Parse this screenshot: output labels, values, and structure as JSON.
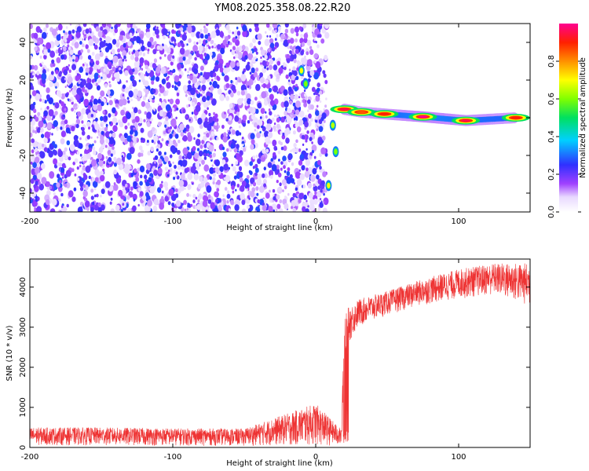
{
  "title": "YM08.2025.358.08.22.R20",
  "chart_data": [
    {
      "type": "heatmap",
      "title": "YM08.2025.358.08.22.R20",
      "xlabel": "Height of straight line (km)",
      "ylabel": "Frequency (Hz)",
      "xlim": [
        -200,
        150
      ],
      "ylim": [
        -50,
        50
      ],
      "x_ticks": [
        -200,
        -100,
        0,
        100
      ],
      "y_ticks": [
        -40,
        -20,
        0,
        20,
        40
      ],
      "x_tick_labels": [
        "-200",
        "-100",
        "0",
        "100"
      ],
      "y_tick_labels": [
        "-40",
        "-20",
        "0",
        "20",
        "40"
      ],
      "noise_region_x": [
        -200,
        8
      ],
      "signal_track": [
        {
          "x": 20,
          "freq": 4.5,
          "amp": 0.95
        },
        {
          "x": 32,
          "freq": 3.0,
          "amp": 0.85
        },
        {
          "x": 48,
          "freq": 2.0,
          "amp": 0.9
        },
        {
          "x": 75,
          "freq": 0.5,
          "amp": 1.0
        },
        {
          "x": 105,
          "freq": -1.5,
          "amp": 0.95
        },
        {
          "x": 140,
          "freq": 0.0,
          "amp": 0.9
        }
      ],
      "isolated_blobs": [
        {
          "x": -10,
          "freq": 25,
          "amp": 0.7
        },
        {
          "x": -7,
          "freq": 18,
          "amp": 0.6
        },
        {
          "x": 12,
          "freq": -4,
          "amp": 0.65
        },
        {
          "x": 14,
          "freq": -18,
          "amp": 0.6
        },
        {
          "x": 9,
          "freq": -36,
          "amp": 0.7
        }
      ],
      "colorbar": {
        "label": "Normalized spectral amplitude",
        "range": [
          0,
          1
        ],
        "ticks": [
          "0.0",
          "0.2",
          "0.4",
          "0.6",
          "0.8"
        ],
        "tick_values": [
          0.0,
          0.2,
          0.4,
          0.6,
          0.8
        ]
      }
    },
    {
      "type": "line",
      "xlabel": "Height of straight line (km)",
      "ylabel": "SNR (10 * v/v)",
      "xlim": [
        -200,
        150
      ],
      "ylim": [
        0,
        4700
      ],
      "x_ticks": [
        -200,
        -100,
        0,
        100
      ],
      "y_ticks": [
        0,
        1000,
        2000,
        3000,
        4000
      ],
      "x_tick_labels": [
        "-200",
        "-100",
        "0",
        "100"
      ],
      "y_tick_labels": [
        "0",
        "1000",
        "2000",
        "3000",
        "4000"
      ],
      "line_color": "#ee3333",
      "series_envelope": [
        {
          "x": -200,
          "low": 50,
          "high": 500
        },
        {
          "x": -150,
          "low": 50,
          "high": 500
        },
        {
          "x": -100,
          "low": 40,
          "high": 480
        },
        {
          "x": -50,
          "low": 40,
          "high": 470
        },
        {
          "x": 0,
          "low": 40,
          "high": 1100
        },
        {
          "x": 18,
          "low": 40,
          "high": 450
        },
        {
          "x": 20,
          "low": 2400,
          "high": 3400
        },
        {
          "x": 30,
          "low": 3000,
          "high": 3700
        },
        {
          "x": 50,
          "low": 3300,
          "high": 3900
        },
        {
          "x": 75,
          "low": 3550,
          "high": 4200
        },
        {
          "x": 100,
          "low": 3700,
          "high": 4450
        },
        {
          "x": 125,
          "low": 3800,
          "high": 4600
        },
        {
          "x": 150,
          "low": 3500,
          "high": 4600
        }
      ]
    }
  ]
}
